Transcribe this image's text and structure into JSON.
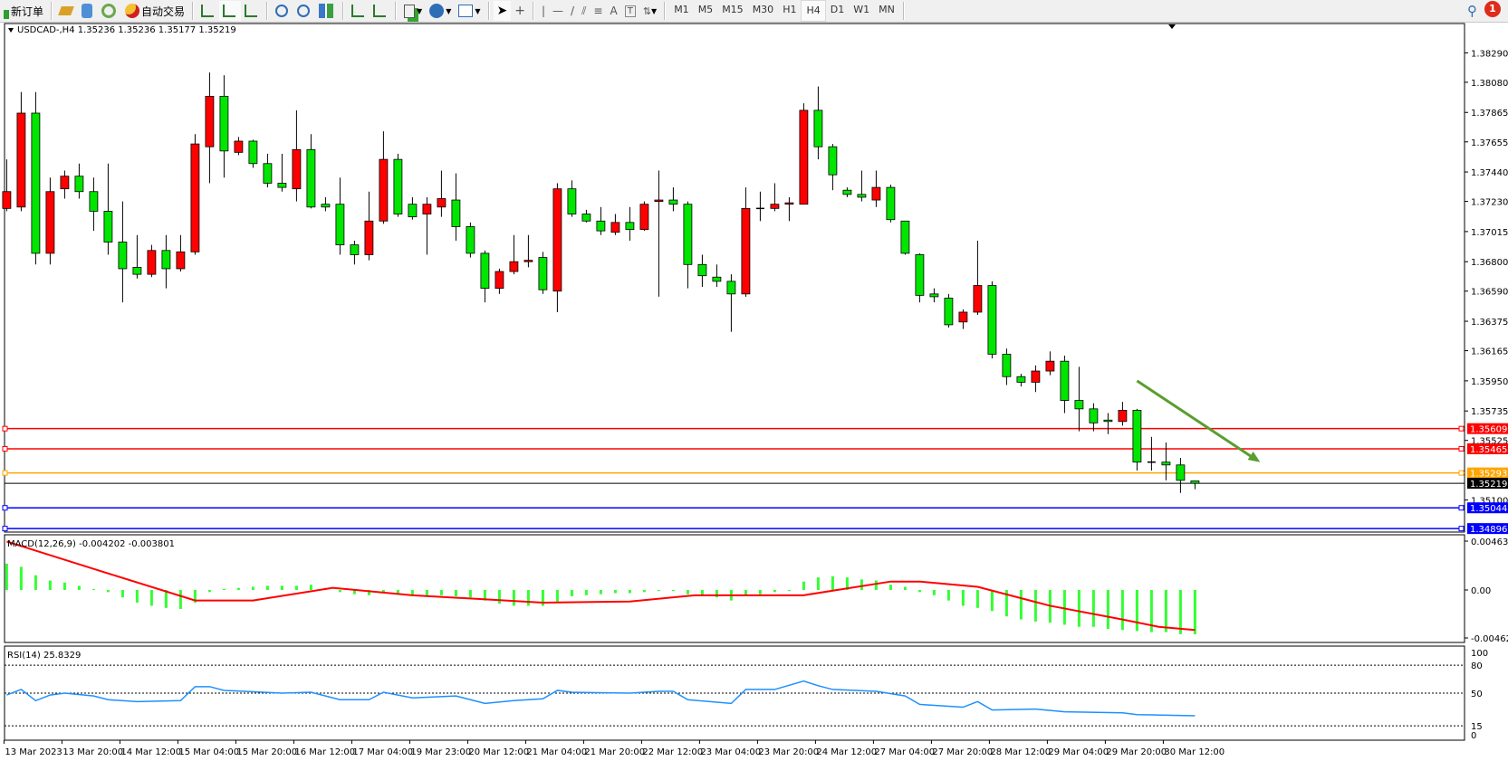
{
  "toolbar": {
    "new_order": "新订单",
    "auto_trading": "自动交易",
    "timeframes": [
      "M1",
      "M5",
      "M15",
      "M30",
      "H1",
      "H4",
      "D1",
      "W1",
      "MN"
    ],
    "selected_timeframe": "H4",
    "notification_count": "1"
  },
  "colors": {
    "bull": "#ff0000",
    "bear": "#00e600",
    "macd_hist": "#33ff33",
    "macd_signal": "#ff0000",
    "rsi": "#1e90ff",
    "arrow": "#5a9e2f"
  },
  "main": {
    "header": "USDCAD-,H4  1.35236 1.35236 1.35177 1.35219",
    "price_ticks": [
      "1.38290",
      "1.38080",
      "1.37865",
      "1.37655",
      "1.37440",
      "1.37230",
      "1.37015",
      "1.36800",
      "1.36590",
      "1.36375",
      "1.36165",
      "1.35950",
      "1.35735",
      "1.35525",
      "1.35100"
    ],
    "current_price": "1.35219",
    "levels": [
      {
        "price": "1.35609",
        "color": "#ff0000"
      },
      {
        "price": "1.35465",
        "color": "#ff0000"
      },
      {
        "price": "1.35293",
        "color": "#ffa500"
      },
      {
        "price": "1.35044",
        "color": "#0000ff"
      },
      {
        "price": "1.34896",
        "color": "#0000ff"
      }
    ],
    "arrow": {
      "from": {
        "bar": 78,
        "price": 1.3595
      },
      "to": {
        "bar": 86.5,
        "price": 1.3537
      }
    }
  },
  "chart_data": {
    "type": "candlestick",
    "symbol": "USDCAD-",
    "timeframe": "H4",
    "ohlc": [
      [
        1.3718,
        1.3753,
        1.3716,
        1.373
      ],
      [
        1.3719,
        1.3801,
        1.3716,
        1.3786
      ],
      [
        1.3786,
        1.3801,
        1.3678,
        1.3686
      ],
      [
        1.3686,
        1.374,
        1.3678,
        1.373
      ],
      [
        1.3732,
        1.3745,
        1.3725,
        1.3741
      ],
      [
        1.3741,
        1.375,
        1.3725,
        1.373
      ],
      [
        1.373,
        1.374,
        1.3702,
        1.3716
      ],
      [
        1.3716,
        1.375,
        1.3685,
        1.3694
      ],
      [
        1.3694,
        1.3723,
        1.3651,
        1.3675
      ],
      [
        1.3676,
        1.3699,
        1.3668,
        1.3671
      ],
      [
        1.3671,
        1.3692,
        1.3669,
        1.3688
      ],
      [
        1.3688,
        1.3699,
        1.3661,
        1.3675
      ],
      [
        1.3675,
        1.3699,
        1.3673,
        1.3687
      ],
      [
        1.3687,
        1.3771,
        1.3685,
        1.3764
      ],
      [
        1.3762,
        1.3815,
        1.3736,
        1.3798
      ],
      [
        1.3798,
        1.3813,
        1.374,
        1.3759
      ],
      [
        1.3758,
        1.3769,
        1.3756,
        1.3766
      ],
      [
        1.3766,
        1.3767,
        1.3747,
        1.375
      ],
      [
        1.375,
        1.3757,
        1.3733,
        1.3736
      ],
      [
        1.3736,
        1.3757,
        1.373,
        1.3733
      ],
      [
        1.3732,
        1.3788,
        1.3723,
        1.376
      ],
      [
        1.376,
        1.3771,
        1.3718,
        1.3719
      ],
      [
        1.3721,
        1.3726,
        1.3716,
        1.3719
      ],
      [
        1.3721,
        1.374,
        1.3685,
        1.3692
      ],
      [
        1.3692,
        1.3695,
        1.3678,
        1.3685
      ],
      [
        1.3685,
        1.373,
        1.3681,
        1.3709
      ],
      [
        1.3709,
        1.3773,
        1.3707,
        1.3753
      ],
      [
        1.3753,
        1.3757,
        1.3712,
        1.3714
      ],
      [
        1.3721,
        1.3726,
        1.371,
        1.3712
      ],
      [
        1.3714,
        1.3726,
        1.3685,
        1.3721
      ],
      [
        1.3719,
        1.3745,
        1.3712,
        1.3725
      ],
      [
        1.3724,
        1.3743,
        1.3695,
        1.3705
      ],
      [
        1.3705,
        1.3708,
        1.3683,
        1.3686
      ],
      [
        1.3686,
        1.3688,
        1.3651,
        1.3661
      ],
      [
        1.3661,
        1.3675,
        1.3657,
        1.3673
      ],
      [
        1.3673,
        1.3699,
        1.3671,
        1.368
      ],
      [
        1.368,
        1.3699,
        1.3676,
        1.3681
      ],
      [
        1.3683,
        1.3687,
        1.3657,
        1.366
      ],
      [
        1.3659,
        1.3736,
        1.3644,
        1.3732
      ],
      [
        1.3732,
        1.3738,
        1.3712,
        1.3714
      ],
      [
        1.3714,
        1.3717,
        1.3708,
        1.3709
      ],
      [
        1.3709,
        1.3719,
        1.3699,
        1.3702
      ],
      [
        1.3701,
        1.3714,
        1.3699,
        1.3708
      ],
      [
        1.3708,
        1.3719,
        1.3695,
        1.3703
      ],
      [
        1.3703,
        1.3723,
        1.3702,
        1.3721
      ],
      [
        1.3723,
        1.3745,
        1.3655,
        1.3724
      ],
      [
        1.3724,
        1.3733,
        1.3716,
        1.3721
      ],
      [
        1.3721,
        1.3723,
        1.3661,
        1.3678
      ],
      [
        1.3678,
        1.3685,
        1.3662,
        1.367
      ],
      [
        1.3669,
        1.3678,
        1.3662,
        1.3666
      ],
      [
        1.3666,
        1.3671,
        1.363,
        1.3657
      ],
      [
        1.3657,
        1.3733,
        1.3655,
        1.3718
      ],
      [
        1.3718,
        1.373,
        1.3709,
        1.3718
      ],
      [
        1.3718,
        1.3736,
        1.3716,
        1.3721
      ],
      [
        1.3721,
        1.3726,
        1.3709,
        1.3722
      ],
      [
        1.3721,
        1.3793,
        1.3721,
        1.3788
      ],
      [
        1.3788,
        1.3805,
        1.3753,
        1.3762
      ],
      [
        1.3762,
        1.3764,
        1.3731,
        1.3742
      ],
      [
        1.3731,
        1.3733,
        1.3726,
        1.3728
      ],
      [
        1.3728,
        1.3745,
        1.3723,
        1.3726
      ],
      [
        1.3724,
        1.3745,
        1.3719,
        1.3733
      ],
      [
        1.3733,
        1.3735,
        1.3708,
        1.371
      ],
      [
        1.3709,
        1.3709,
        1.3685,
        1.3686
      ],
      [
        1.3685,
        1.3686,
        1.3651,
        1.3656
      ],
      [
        1.3657,
        1.3661,
        1.3651,
        1.3655
      ],
      [
        1.3654,
        1.3657,
        1.3633,
        1.3635
      ],
      [
        1.3637,
        1.3646,
        1.3632,
        1.3644
      ],
      [
        1.3644,
        1.3695,
        1.3642,
        1.3663
      ],
      [
        1.3663,
        1.3666,
        1.3611,
        1.3614
      ],
      [
        1.3614,
        1.3618,
        1.3592,
        1.3598
      ],
      [
        1.3598,
        1.36,
        1.3591,
        1.3594
      ],
      [
        1.3594,
        1.3606,
        1.3587,
        1.3602
      ],
      [
        1.3602,
        1.3616,
        1.3599,
        1.3609
      ],
      [
        1.3609,
        1.3613,
        1.3572,
        1.3581
      ],
      [
        1.3581,
        1.3605,
        1.3559,
        1.3575
      ],
      [
        1.3575,
        1.3579,
        1.3559,
        1.3565
      ],
      [
        1.3567,
        1.3572,
        1.3557,
        1.3566
      ],
      [
        1.3566,
        1.358,
        1.3563,
        1.3574
      ],
      [
        1.3574,
        1.3575,
        1.3531,
        1.3537
      ],
      [
        1.3537,
        1.3555,
        1.3531,
        1.3537
      ],
      [
        1.3537,
        1.3551,
        1.3524,
        1.3535
      ],
      [
        1.3535,
        1.354,
        1.3515,
        1.3524
      ],
      [
        1.35236,
        1.35236,
        1.35177,
        1.35219
      ]
    ],
    "ohlc_order": [
      "open",
      "high",
      "low",
      "close"
    ],
    "ylim": [
      1.348,
      1.384
    ],
    "time_labels": [
      {
        "bar": 0,
        "label": "13 Mar 2023"
      },
      {
        "bar": 4,
        "label": "13 Mar 20:00"
      },
      {
        "bar": 8,
        "label": "14 Mar 12:00"
      },
      {
        "bar": 12,
        "label": "15 Mar 04:00"
      },
      {
        "bar": 16,
        "label": "15 Mar 20:00"
      },
      {
        "bar": 20,
        "label": "16 Mar 12:00"
      },
      {
        "bar": 24,
        "label": "17 Mar 04:00"
      },
      {
        "bar": 28,
        "label": "19 Mar 23:00"
      },
      {
        "bar": 32,
        "label": "20 Mar 12:00"
      },
      {
        "bar": 36,
        "label": "21 Mar 04:00"
      },
      {
        "bar": 40,
        "label": "21 Mar 20:00"
      },
      {
        "bar": 44,
        "label": "22 Mar 12:00"
      },
      {
        "bar": 48,
        "label": "23 Mar 04:00"
      },
      {
        "bar": 52,
        "label": "23 Mar 20:00"
      },
      {
        "bar": 56,
        "label": "24 Mar 12:00"
      },
      {
        "bar": 60,
        "label": "27 Mar 04:00"
      },
      {
        "bar": 64,
        "label": "27 Mar 20:00"
      },
      {
        "bar": 68,
        "label": "28 Mar 12:00"
      },
      {
        "bar": 72,
        "label": "29 Mar 04:00"
      },
      {
        "bar": 76,
        "label": "29 Mar 20:00"
      },
      {
        "bar": 80,
        "label": "30 Mar 12:00"
      }
    ],
    "macd": {
      "label": "MACD(12,26,9) -0.004202 -0.003801",
      "ticks": [
        "0.004639",
        "0.00",
        "-0.004623"
      ],
      "ylim": [
        -0.004623,
        0.004639
      ],
      "main": [
        0.0025,
        0.0022,
        0.0014,
        0.0009,
        0.0007,
        0.0004,
        0.0001,
        -0.0002,
        -0.0007,
        -0.0012,
        -0.0015,
        -0.0017,
        -0.0018,
        -0.0012,
        -0.0002,
        0.0001,
        0.0002,
        0.0003,
        0.0004,
        0.0004,
        0.0004,
        0.0005,
        0.0002,
        -0.0002,
        -0.0004,
        -0.0005,
        -0.0003,
        -0.0004,
        -0.0005,
        -0.0005,
        -0.0005,
        -0.0006,
        -0.0007,
        -0.001,
        -0.0013,
        -0.0015,
        -0.0015,
        -0.0015,
        -0.0011,
        -0.0006,
        -0.0005,
        -0.0004,
        -0.0003,
        -0.0003,
        -0.0002,
        -0.0001,
        -0.0001,
        -0.0004,
        -0.0006,
        -0.0007,
        -0.001,
        -0.0006,
        -0.0004,
        -0.0002,
        -0.0001,
        0.0008,
        0.0012,
        0.0013,
        0.0012,
        0.001,
        0.0009,
        0.0005,
        0.0003,
        -0.0002,
        -0.0005,
        -0.001,
        -0.0015,
        -0.0017,
        -0.002,
        -0.0025,
        -0.0028,
        -0.003,
        -0.0031,
        -0.0033,
        -0.0035,
        -0.0035,
        -0.0037,
        -0.0038,
        -0.0039,
        -0.004,
        -0.004,
        -0.0042,
        -0.004202
      ],
      "signal_points": [
        [
          0,
          0.0046
        ],
        [
          6,
          0.002
        ],
        [
          13,
          -0.001
        ],
        [
          17,
          -0.001
        ],
        [
          22.5,
          0.0002
        ],
        [
          28,
          -0.0005
        ],
        [
          37,
          -0.0012
        ],
        [
          43,
          -0.0011
        ],
        [
          47.5,
          -0.0005
        ],
        [
          55,
          -0.0005
        ],
        [
          61,
          0.0008
        ],
        [
          63,
          0.0008
        ],
        [
          67,
          0.0003
        ],
        [
          72,
          -0.0015
        ],
        [
          77,
          -0.0028
        ],
        [
          79.5,
          -0.0035
        ],
        [
          82,
          -0.003801
        ]
      ]
    },
    "rsi": {
      "label": "RSI(14) 25.8329",
      "ticks": [
        "100",
        "80",
        "50",
        "15",
        "0"
      ],
      "levels": [
        80,
        50,
        15
      ],
      "ylim": [
        0,
        100
      ],
      "points": [
        [
          0,
          48
        ],
        [
          1,
          54
        ],
        [
          2,
          42
        ],
        [
          3,
          48
        ],
        [
          4,
          50
        ],
        [
          6,
          47
        ],
        [
          7,
          43
        ],
        [
          9,
          41
        ],
        [
          12,
          42
        ],
        [
          13,
          57
        ],
        [
          14,
          57
        ],
        [
          15,
          53
        ],
        [
          19,
          50
        ],
        [
          21,
          51
        ],
        [
          23,
          43
        ],
        [
          25,
          43
        ],
        [
          26,
          51
        ],
        [
          28,
          45
        ],
        [
          31,
          47
        ],
        [
          33,
          39
        ],
        [
          35,
          42
        ],
        [
          37,
          44
        ],
        [
          38,
          53
        ],
        [
          39,
          51
        ],
        [
          43,
          50
        ],
        [
          45,
          52
        ],
        [
          46,
          52
        ],
        [
          47,
          43
        ],
        [
          50,
          39
        ],
        [
          51,
          54
        ],
        [
          53,
          54
        ],
        [
          55,
          63
        ],
        [
          56,
          58
        ],
        [
          57,
          54
        ],
        [
          60,
          52
        ],
        [
          62,
          47
        ],
        [
          63,
          38
        ],
        [
          65,
          36
        ],
        [
          66,
          35
        ],
        [
          67,
          41
        ],
        [
          68,
          32
        ],
        [
          71,
          33
        ],
        [
          73,
          30
        ],
        [
          77,
          29
        ],
        [
          78,
          27
        ],
        [
          82,
          25.8329
        ]
      ]
    }
  }
}
